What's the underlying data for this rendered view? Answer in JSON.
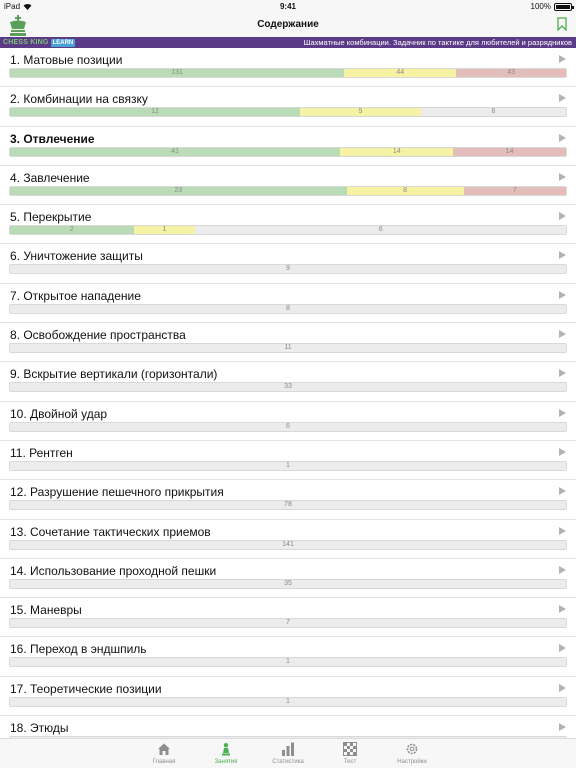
{
  "status_bar": {
    "device": "iPad",
    "time": "9:41",
    "battery": "100%"
  },
  "nav": {
    "title": "Содержание",
    "logo_icon": "chess-king-logo-icon",
    "bookmark_icon": "bookmark-icon"
  },
  "banner": {
    "brand": "CHESS KING",
    "brand_badge": "LEARN",
    "text": "Шахматные комбинации. Задачник по тактике для любителей и разрядников",
    "background": "#5b3b86"
  },
  "colors": {
    "solved": "#b9dcb7",
    "partial": "#f6f2a4",
    "failed": "#e3bcbc",
    "unsolved": "#ececec",
    "active_tab": "#4caf50"
  },
  "chapters": [
    {
      "title": "1. Матовые позиции",
      "bold": false,
      "counts": {
        "green": 131,
        "yellow": 44,
        "red": 43,
        "gray": 0
      }
    },
    {
      "title": "2. Комбинации на связку",
      "bold": false,
      "counts": {
        "green": 12,
        "yellow": 5,
        "red": 0,
        "gray": 6
      }
    },
    {
      "title": "3. Отвлечение",
      "bold": true,
      "counts": {
        "green": 41,
        "yellow": 14,
        "red": 14,
        "gray": 0
      }
    },
    {
      "title": "4. Завлечение",
      "bold": false,
      "counts": {
        "green": 23,
        "yellow": 8,
        "red": 7,
        "gray": 0
      }
    },
    {
      "title": "5. Перекрытие",
      "bold": false,
      "counts": {
        "green": 2,
        "yellow": 1,
        "red": 0,
        "gray": 6
      }
    },
    {
      "title": "6. Уничтожение защиты",
      "bold": false,
      "counts": {
        "green": 0,
        "yellow": 0,
        "red": 0,
        "gray": 9
      }
    },
    {
      "title": "7. Открытое нападение",
      "bold": false,
      "counts": {
        "green": 0,
        "yellow": 0,
        "red": 0,
        "gray": 8
      }
    },
    {
      "title": "8. Освобождение пространства",
      "bold": false,
      "counts": {
        "green": 0,
        "yellow": 0,
        "red": 0,
        "gray": 11
      }
    },
    {
      "title": "9. Вскрытие вертикали (горизонтали)",
      "bold": false,
      "counts": {
        "green": 0,
        "yellow": 0,
        "red": 0,
        "gray": 33
      }
    },
    {
      "title": "10. Двойной удар",
      "bold": false,
      "counts": {
        "green": 0,
        "yellow": 0,
        "red": 0,
        "gray": 6
      }
    },
    {
      "title": "11. Рентген",
      "bold": false,
      "counts": {
        "green": 0,
        "yellow": 0,
        "red": 0,
        "gray": 1
      }
    },
    {
      "title": "12. Разрушение пешечного прикрытия",
      "bold": false,
      "counts": {
        "green": 0,
        "yellow": 0,
        "red": 0,
        "gray": 78
      }
    },
    {
      "title": "13. Сочетание тактических приемов",
      "bold": false,
      "counts": {
        "green": 0,
        "yellow": 0,
        "red": 0,
        "gray": 141
      }
    },
    {
      "title": "14. Использование проходной пешки",
      "bold": false,
      "counts": {
        "green": 0,
        "yellow": 0,
        "red": 0,
        "gray": 35
      }
    },
    {
      "title": "15. Маневры",
      "bold": false,
      "counts": {
        "green": 0,
        "yellow": 0,
        "red": 0,
        "gray": 7
      }
    },
    {
      "title": "16. Переход в эндшпиль",
      "bold": false,
      "counts": {
        "green": 0,
        "yellow": 0,
        "red": 0,
        "gray": 1
      }
    },
    {
      "title": "17. Теоретические позиции",
      "bold": false,
      "counts": {
        "green": 0,
        "yellow": 0,
        "red": 0,
        "gray": 1
      }
    },
    {
      "title": "18. Этюды",
      "bold": false,
      "counts": {
        "green": 0,
        "yellow": 0,
        "red": 0,
        "gray": 0
      }
    }
  ],
  "tabs": [
    {
      "label": "Главная",
      "icon": "home-icon",
      "active": false
    },
    {
      "label": "Занятия",
      "icon": "pawn-icon",
      "active": true
    },
    {
      "label": "Статистика",
      "icon": "bar-chart-icon",
      "active": false
    },
    {
      "label": "Тест",
      "icon": "chessboard-icon",
      "active": false
    },
    {
      "label": "Настройки",
      "icon": "gear-icon",
      "active": false
    }
  ]
}
